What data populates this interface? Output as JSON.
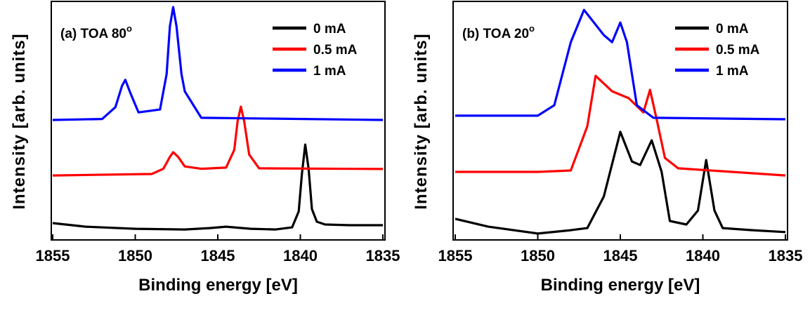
{
  "chart_data": [
    {
      "type": "line",
      "annotation": "(a) TOA 80",
      "annotation_sup": "o",
      "xlabel": "Binding energy [eV]",
      "ylabel": "Intensity [arb. units]",
      "xlim": [
        1855,
        1835
      ],
      "xticks": [
        1855,
        1850,
        1845,
        1840,
        1835
      ],
      "ylim": [
        0,
        100
      ],
      "legend": "upper right",
      "series": [
        {
          "name": "0 mA",
          "color": "#000000",
          "x": [
            1855,
            1853,
            1850,
            1847,
            1845.5,
            1844.5,
            1843,
            1841.5,
            1840.5,
            1840.1,
            1839.9,
            1839.7,
            1839.5,
            1839.3,
            1839,
            1838.5,
            1837,
            1835
          ],
          "values": [
            7.1,
            5.6,
            4.7,
            4.4,
            5.0,
            5.6,
            4.7,
            4.4,
            5.3,
            12,
            28,
            40.2,
            30,
            13,
            7.7,
            6.5,
            6.2,
            6.2
          ]
        },
        {
          "name": "0.5 mA",
          "color": "#ff0000",
          "x": [
            1855,
            1849,
            1848.3,
            1847.9,
            1847.7,
            1847.4,
            1847,
            1846,
            1844.5,
            1844,
            1843.8,
            1843.6,
            1843.4,
            1843.1,
            1842.5,
            1835
          ],
          "values": [
            27.2,
            27.8,
            30,
            35,
            37,
            35,
            31,
            30,
            30.5,
            38,
            50,
            56.2,
            50,
            36,
            30.2,
            29.9
          ]
        },
        {
          "name": "1 mA",
          "color": "#0000ff",
          "x": [
            1855,
            1852,
            1851.2,
            1850.8,
            1850.6,
            1850.3,
            1849.8,
            1848.5,
            1848.1,
            1847.9,
            1847.7,
            1847.5,
            1847.2,
            1847,
            1846,
            1835
          ],
          "values": [
            50.6,
            51,
            56,
            65,
            67.5,
            62,
            53.8,
            55,
            70,
            90,
            98.2,
            90,
            70,
            62.7,
            51.5,
            50.6
          ]
        }
      ]
    },
    {
      "type": "line",
      "annotation": "(b) TOA 20",
      "annotation_sup": "o",
      "xlabel": "Binding energy [eV]",
      "ylabel": "Intensity [arb. units]",
      "xlim": [
        1855,
        1835
      ],
      "xticks": [
        1855,
        1850,
        1845,
        1840,
        1835
      ],
      "ylim": [
        0,
        100
      ],
      "legend": "upper right",
      "series": [
        {
          "name": "0 mA",
          "color": "#000000",
          "x": [
            1855,
            1853,
            1850,
            1848,
            1847,
            1846,
            1845,
            1844.3,
            1843.8,
            1843.1,
            1842.5,
            1842,
            1841,
            1840.3,
            1839.8,
            1839.3,
            1838.8,
            1837,
            1835
          ],
          "values": [
            8.9,
            5.6,
            2.7,
            4.1,
            5.0,
            18.3,
            45.6,
            33.1,
            31.6,
            42,
            28.7,
            8,
            6.5,
            12.4,
            33.7,
            12.4,
            5,
            4.1,
            3.3
          ]
        },
        {
          "name": "0.5 mA",
          "color": "#ff0000",
          "x": [
            1855,
            1850,
            1848,
            1847,
            1846.5,
            1845.5,
            1844.5,
            1843.6,
            1843.2,
            1842.8,
            1842.3,
            1841.5,
            1835
          ],
          "values": [
            28.7,
            28.7,
            29.3,
            47.9,
            69.2,
            62.7,
            59.8,
            53.8,
            63.3,
            50.9,
            34.6,
            30.2,
            27.2
          ]
        },
        {
          "name": "1 mA",
          "color": "#0000ff",
          "x": [
            1855,
            1850,
            1849,
            1848,
            1847.2,
            1846,
            1845.5,
            1845,
            1844.6,
            1844,
            1843,
            1835
          ],
          "values": [
            52.4,
            52.4,
            56.8,
            83.4,
            97,
            86.4,
            83.4,
            91.7,
            83.4,
            56.8,
            51.5,
            50.9
          ]
        }
      ]
    }
  ]
}
